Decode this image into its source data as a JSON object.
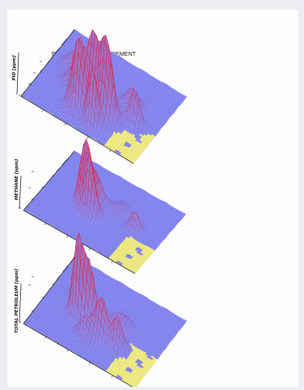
{
  "chart_data": {
    "type": "surface3d",
    "title": "ECOPROBE 5 MEASUREMENT",
    "panels": [
      {
        "name": "pid",
        "zlabel": "PID [ppm]",
        "zlim": [
          0,
          250
        ],
        "peaks": [
          {
            "x": 0.42,
            "y": 0.2,
            "z": 190,
            "w": 0.055
          },
          {
            "x": 0.5,
            "y": 0.3,
            "z": 175,
            "w": 0.045
          },
          {
            "x": 0.62,
            "y": 0.28,
            "z": 215,
            "w": 0.055
          },
          {
            "x": 0.58,
            "y": 0.12,
            "z": 150,
            "w": 0.04
          },
          {
            "x": 0.82,
            "y": 0.4,
            "z": 95,
            "w": 0.04
          },
          {
            "x": 0.28,
            "y": 0.4,
            "z": 60,
            "w": 0.06
          },
          {
            "x": 0.2,
            "y": 0.6,
            "z": 45,
            "w": 0.07
          },
          {
            "x": 0.72,
            "y": 0.55,
            "z": 50,
            "w": 0.06
          }
        ],
        "flat": {
          "xmin": 0.72,
          "ymin": 0.62,
          "z": 0
        }
      },
      {
        "name": "methane",
        "zlabel": "METHANE [ppm]",
        "zlim": [
          0,
          10000
        ],
        "peaks": [
          {
            "x": 0.35,
            "y": 0.45,
            "z": 7800,
            "w": 0.045
          },
          {
            "x": 0.42,
            "y": 0.38,
            "z": 6500,
            "w": 0.045
          },
          {
            "x": 0.4,
            "y": 0.55,
            "z": 3800,
            "w": 0.05
          },
          {
            "x": 0.78,
            "y": 0.48,
            "z": 2600,
            "w": 0.04
          },
          {
            "x": 0.6,
            "y": 0.6,
            "z": 900,
            "w": 0.07
          }
        ],
        "flat": {
          "xmin": 0.74,
          "ymin": 0.64,
          "z": 0
        }
      },
      {
        "name": "total-petroleum",
        "zlabel": "TOTAL PETROLEUM [ppm]",
        "zlim": [
          0,
          10000
        ],
        "peaks": [
          {
            "x": 0.3,
            "y": 0.4,
            "z": 8500,
            "w": 0.04
          },
          {
            "x": 0.38,
            "y": 0.45,
            "z": 6200,
            "w": 0.045
          },
          {
            "x": 0.55,
            "y": 0.32,
            "z": 4500,
            "w": 0.05
          },
          {
            "x": 0.7,
            "y": 0.3,
            "z": 3500,
            "w": 0.045
          },
          {
            "x": 0.45,
            "y": 0.22,
            "z": 2500,
            "w": 0.05
          },
          {
            "x": 0.25,
            "y": 0.6,
            "z": 2000,
            "w": 0.06
          },
          {
            "x": 0.62,
            "y": 0.55,
            "z": 1500,
            "w": 0.06
          }
        ],
        "flat": {
          "xmin": 0.72,
          "ymin": 0.6,
          "z": 0
        }
      }
    ]
  },
  "colors": {
    "surface": "#8a8cf0",
    "grid": "#6f72e6",
    "peak": "#e8152b",
    "flat": "#f2ee88",
    "axis": "#222222"
  }
}
